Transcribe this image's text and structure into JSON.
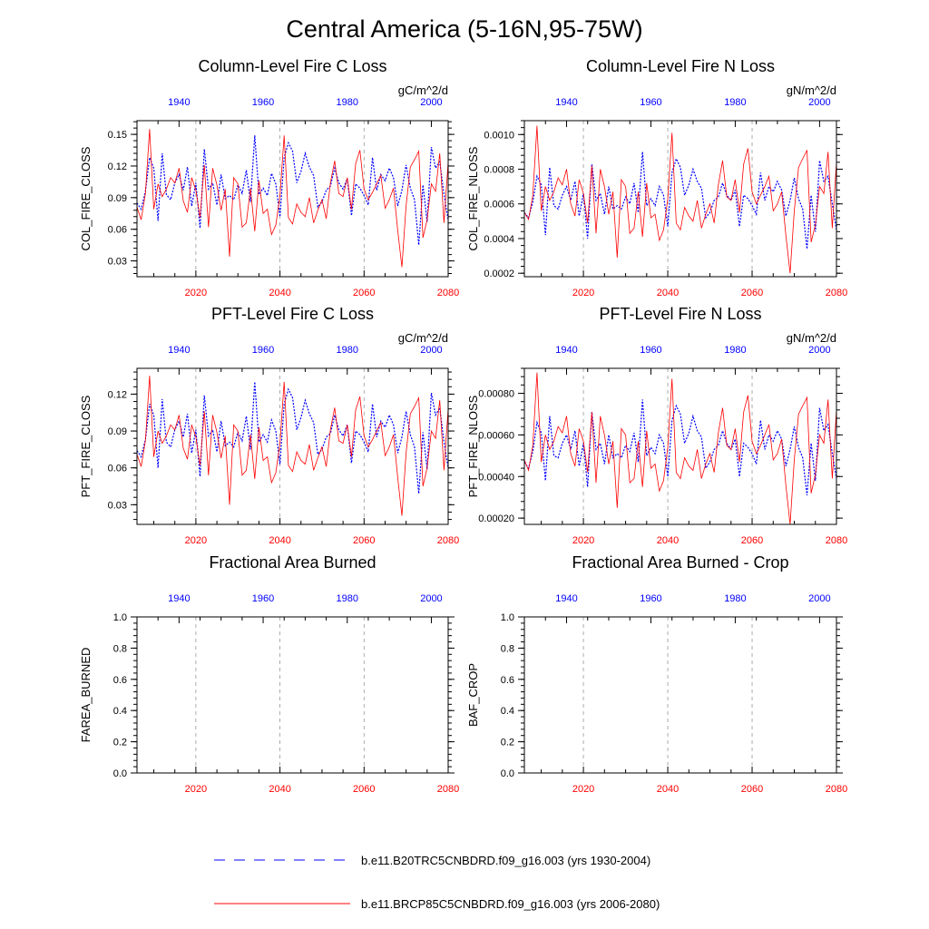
{
  "figure_title": "Central America (5-16N,95-75W)",
  "colors": {
    "historical": "#0000ff",
    "future": "#ff0000",
    "guide": "#999999",
    "axis": "#000000"
  },
  "legend": {
    "historical_label": "b.e11.B20TRC5CNBDRD.f09_g16.003 (yrs 1930-2004)",
    "future_label": "b.e11.BRCP85C5CNBDRD.f09_g16.003 (yrs 2006-2080)"
  },
  "chart_data": [
    {
      "id": "p1",
      "type": "line",
      "title": "Column-Level Fire C Loss",
      "units": "gC/m^2/d",
      "ylabel": "COL_FIRE_CLOSS",
      "top_axis": {
        "range": [
          1930,
          2004
        ],
        "ticks": [
          "1940",
          "1960",
          "1980",
          "2000"
        ]
      },
      "bottom_axis": {
        "range": [
          2006,
          2080
        ],
        "ticks": [
          "2020",
          "2040",
          "2060",
          "2080"
        ]
      },
      "guide_years": [
        2020,
        2040,
        2060
      ],
      "ylim": [
        0.015,
        0.163
      ],
      "yticks": [
        "0.03",
        "0.06",
        "0.09",
        "0.12",
        "0.15"
      ],
      "ytick_values": [
        0.03,
        0.06,
        0.09,
        0.12,
        0.15
      ],
      "series": [
        {
          "name": "b.e11.B20TRC5CNBDRD.f09_g16.003",
          "style": "dashed",
          "color": "#0000ff",
          "values": [
            0.085,
            0.079,
            0.096,
            0.128,
            0.118,
            0.068,
            0.132,
            0.093,
            0.088,
            0.104,
            0.112,
            0.097,
            0.119,
            0.082,
            0.104,
            0.061,
            0.136,
            0.098,
            0.104,
            0.083,
            0.112,
            0.089,
            0.092,
            0.088,
            0.102,
            0.094,
            0.116,
            0.086,
            0.149,
            0.093,
            0.099,
            0.092,
            0.113,
            0.103,
            0.072,
            0.128,
            0.142,
            0.134,
            0.104,
            0.115,
            0.132,
            0.119,
            0.111,
            0.081,
            0.086,
            0.097,
            0.101,
            0.118,
            0.104,
            0.098,
            0.108,
            0.073,
            0.103,
            0.099,
            0.092,
            0.083,
            0.128,
            0.097,
            0.112,
            0.106,
            0.118,
            0.109,
            0.082,
            0.097,
            0.121,
            0.099,
            0.088,
            0.045,
            0.102,
            0.067,
            0.138,
            0.118,
            0.124,
            0.093,
            0.069
          ]
        },
        {
          "name": "b.e11.BRCP85C5CNBDRD.f09_g16.003",
          "style": "solid",
          "color": "#ff0000",
          "values": [
            0.081,
            0.069,
            0.094,
            0.155,
            0.079,
            0.103,
            0.091,
            0.098,
            0.109,
            0.104,
            0.118,
            0.087,
            0.076,
            0.109,
            0.097,
            0.071,
            0.121,
            0.062,
            0.118,
            0.102,
            0.078,
            0.098,
            0.034,
            0.109,
            0.103,
            0.062,
            0.066,
            0.099,
            0.058,
            0.106,
            0.075,
            0.079,
            0.055,
            0.064,
            0.092,
            0.149,
            0.071,
            0.065,
            0.084,
            0.076,
            0.072,
            0.09,
            0.066,
            0.078,
            0.088,
            0.07,
            0.104,
            0.125,
            0.094,
            0.091,
            0.109,
            0.079,
            0.122,
            0.135,
            0.098,
            0.088,
            0.095,
            0.103,
            0.111,
            0.08,
            0.088,
            0.099,
            0.059,
            0.024,
            0.082,
            0.119,
            0.126,
            0.134,
            0.052,
            0.069,
            0.103,
            0.096,
            0.132,
            0.066,
            0.124
          ]
        }
      ]
    },
    {
      "id": "p2",
      "type": "line",
      "title": "Column-Level Fire N Loss",
      "units": "gN/m^2/d",
      "ylabel": "COL_FIRE_NLOSS",
      "top_axis": {
        "range": [
          1930,
          2004
        ],
        "ticks": [
          "1940",
          "1960",
          "1980",
          "2000"
        ]
      },
      "bottom_axis": {
        "range": [
          2006,
          2080
        ],
        "ticks": [
          "2020",
          "2040",
          "2060",
          "2080"
        ]
      },
      "guide_years": [
        2020,
        2040,
        2060
      ],
      "ylim": [
        0.00018,
        0.00108
      ],
      "yticks": [
        "0.0002",
        "0.0004",
        "0.0006",
        "0.0008",
        "0.0010"
      ],
      "ytick_values": [
        0.0002,
        0.0004,
        0.0006,
        0.0008,
        0.001
      ],
      "series": [
        {
          "name": "b.e11.B20TRC5CNBDRD.f09_g16.003",
          "style": "dashed",
          "color": "#0000ff",
          "values": [
            0.00055,
            0.00052,
            0.00061,
            0.00076,
            0.00071,
            0.00042,
            0.00081,
            0.00059,
            0.00057,
            0.00065,
            0.0007,
            0.00062,
            0.00073,
            0.00053,
            0.00066,
            0.0004,
            0.00083,
            0.00062,
            0.00066,
            0.00054,
            0.0007,
            0.00057,
            0.00059,
            0.00057,
            0.00064,
            0.0006,
            0.00072,
            0.00055,
            0.0009,
            0.00059,
            0.00063,
            0.00059,
            0.0007,
            0.00065,
            0.00047,
            0.00078,
            0.00086,
            0.00081,
            0.00065,
            0.00071,
            0.0008,
            0.00073,
            0.00069,
            0.00052,
            0.00055,
            0.00062,
            0.00064,
            0.00072,
            0.00065,
            0.00062,
            0.00068,
            0.00047,
            0.00065,
            0.00063,
            0.00059,
            0.00054,
            0.00078,
            0.00062,
            0.0007,
            0.00067,
            0.00073,
            0.00068,
            0.00053,
            0.00062,
            0.00075,
            0.00063,
            0.00057,
            0.00034,
            0.00065,
            0.00044,
            0.00085,
            0.00073,
            0.00076,
            0.0006,
            0.00045
          ]
        },
        {
          "name": "b.e11.BRCP85C5CNBDRD.f09_g16.003",
          "style": "solid",
          "color": "#ff0000",
          "values": [
            0.00055,
            0.00051,
            0.00065,
            0.00105,
            0.00056,
            0.0007,
            0.00062,
            0.00067,
            0.00075,
            0.00071,
            0.0008,
            0.0006,
            0.00053,
            0.00074,
            0.00066,
            0.00049,
            0.00082,
            0.00043,
            0.0008,
            0.0007,
            0.00054,
            0.00067,
            0.00029,
            0.00074,
            0.0007,
            0.00043,
            0.00046,
            0.00067,
            0.00041,
            0.00072,
            0.00052,
            0.00054,
            0.00039,
            0.00045,
            0.00063,
            0.00101,
            0.00049,
            0.00045,
            0.00058,
            0.00053,
            0.0005,
            0.00062,
            0.00046,
            0.00054,
            0.0006,
            0.00049,
            0.00071,
            0.00085,
            0.00064,
            0.00062,
            0.00074,
            0.00055,
            0.00083,
            0.00092,
            0.00067,
            0.0006,
            0.00065,
            0.0007,
            0.00076,
            0.00056,
            0.0006,
            0.00067,
            0.00042,
            0.0002,
            0.00056,
            0.00081,
            0.00086,
            0.00091,
            0.00038,
            0.00048,
            0.0007,
            0.00066,
            0.0009,
            0.00046,
            0.00084
          ]
        }
      ]
    },
    {
      "id": "p3",
      "type": "line",
      "title": "PFT-Level Fire C Loss",
      "units": "gC/m^2/d",
      "ylabel": "PFT_FIRE_CLOSS",
      "top_axis": {
        "range": [
          1930,
          2004
        ],
        "ticks": [
          "1940",
          "1960",
          "1980",
          "2000"
        ]
      },
      "bottom_axis": {
        "range": [
          2006,
          2080
        ],
        "ticks": [
          "2020",
          "2040",
          "2060",
          "2080"
        ]
      },
      "guide_years": [
        2020,
        2040,
        2060
      ],
      "ylim": [
        0.014,
        0.141
      ],
      "yticks": [
        "0.03",
        "0.06",
        "0.09",
        "0.12"
      ],
      "ytick_values": [
        0.03,
        0.06,
        0.09,
        0.12
      ],
      "series": [
        {
          "name": "b.e11.B20TRC5CNBDRD.f09_g16.003",
          "style": "dashed",
          "color": "#0000ff",
          "values": [
            0.074,
            0.069,
            0.083,
            0.112,
            0.103,
            0.06,
            0.116,
            0.081,
            0.077,
            0.091,
            0.098,
            0.085,
            0.104,
            0.072,
            0.091,
            0.053,
            0.119,
            0.086,
            0.091,
            0.073,
            0.098,
            0.078,
            0.081,
            0.077,
            0.089,
            0.082,
            0.102,
            0.075,
            0.13,
            0.081,
            0.087,
            0.081,
            0.099,
            0.09,
            0.063,
            0.112,
            0.124,
            0.117,
            0.091,
            0.101,
            0.115,
            0.104,
            0.097,
            0.071,
            0.075,
            0.085,
            0.088,
            0.103,
            0.091,
            0.086,
            0.095,
            0.064,
            0.09,
            0.087,
            0.081,
            0.073,
            0.112,
            0.085,
            0.098,
            0.093,
            0.103,
            0.095,
            0.072,
            0.085,
            0.106,
            0.087,
            0.077,
            0.039,
            0.089,
            0.059,
            0.121,
            0.103,
            0.109,
            0.081,
            0.06
          ]
        },
        {
          "name": "b.e11.BRCP85C5CNBDRD.f09_g16.003",
          "style": "solid",
          "color": "#ff0000",
          "values": [
            0.071,
            0.061,
            0.082,
            0.135,
            0.069,
            0.09,
            0.08,
            0.086,
            0.095,
            0.091,
            0.103,
            0.076,
            0.067,
            0.095,
            0.085,
            0.062,
            0.106,
            0.054,
            0.103,
            0.089,
            0.068,
            0.086,
            0.03,
            0.095,
            0.09,
            0.054,
            0.058,
            0.087,
            0.051,
            0.093,
            0.066,
            0.069,
            0.048,
            0.056,
            0.08,
            0.13,
            0.062,
            0.057,
            0.073,
            0.066,
            0.063,
            0.079,
            0.058,
            0.068,
            0.077,
            0.061,
            0.091,
            0.109,
            0.082,
            0.08,
            0.095,
            0.069,
            0.107,
            0.118,
            0.086,
            0.077,
            0.083,
            0.09,
            0.097,
            0.07,
            0.077,
            0.087,
            0.052,
            0.021,
            0.072,
            0.104,
            0.11,
            0.117,
            0.045,
            0.06,
            0.09,
            0.084,
            0.115,
            0.058,
            0.108
          ]
        }
      ]
    },
    {
      "id": "p4",
      "type": "line",
      "title": "PFT-Level Fire N Loss",
      "units": "gN/m^2/d",
      "ylabel": "PFT_FIRE_NLOSS",
      "top_axis": {
        "range": [
          1930,
          2004
        ],
        "ticks": [
          "1940",
          "1960",
          "1980",
          "2000"
        ]
      },
      "bottom_axis": {
        "range": [
          2006,
          2080
        ],
        "ticks": [
          "2020",
          "2040",
          "2060",
          "2080"
        ]
      },
      "guide_years": [
        2020,
        2040,
        2060
      ],
      "ylim": [
        0.00017,
        0.00092
      ],
      "yticks": [
        "0.00020",
        "0.00040",
        "0.00060",
        "0.00080"
      ],
      "ytick_values": [
        0.0002,
        0.0004,
        0.0006,
        0.0008
      ],
      "series": [
        {
          "name": "b.e11.B20TRC5CNBDRD.f09_g16.003",
          "style": "dashed",
          "color": "#0000ff",
          "values": [
            0.00047,
            0.00044,
            0.00052,
            0.00066,
            0.00061,
            0.00038,
            0.00069,
            0.0005,
            0.00049,
            0.00056,
            0.0006,
            0.00053,
            0.00062,
            0.00045,
            0.00056,
            0.00035,
            0.00071,
            0.00053,
            0.00056,
            0.00046,
            0.0006,
            0.00049,
            0.00051,
            0.00049,
            0.00055,
            0.00052,
            0.00061,
            0.00047,
            0.00077,
            0.0005,
            0.00054,
            0.00051,
            0.0006,
            0.00056,
            0.0004,
            0.00067,
            0.00074,
            0.0007,
            0.00056,
            0.00061,
            0.00069,
            0.00062,
            0.00059,
            0.00044,
            0.00047,
            0.00053,
            0.00055,
            0.00062,
            0.00056,
            0.00053,
            0.00058,
            0.0004,
            0.00056,
            0.00054,
            0.00051,
            0.00046,
            0.00067,
            0.00053,
            0.0006,
            0.00057,
            0.00062,
            0.00058,
            0.00045,
            0.00053,
            0.00064,
            0.00054,
            0.00049,
            0.00031,
            0.00056,
            0.00038,
            0.00073,
            0.00062,
            0.00065,
            0.00051,
            0.00039
          ]
        },
        {
          "name": "b.e11.BRCP85C5CNBDRD.f09_g16.003",
          "style": "solid",
          "color": "#ff0000",
          "values": [
            0.00048,
            0.00043,
            0.00055,
            0.0009,
            0.00047,
            0.0006,
            0.00053,
            0.00057,
            0.00064,
            0.00061,
            0.00069,
            0.00051,
            0.00045,
            0.00063,
            0.00057,
            0.00042,
            0.00071,
            0.00037,
            0.00069,
            0.0006,
            0.00046,
            0.00057,
            0.00025,
            0.00063,
            0.0006,
            0.00037,
            0.00039,
            0.00057,
            0.00035,
            0.00062,
            0.00044,
            0.00046,
            0.00033,
            0.00038,
            0.00054,
            0.00087,
            0.00042,
            0.00039,
            0.00049,
            0.00045,
            0.00043,
            0.00053,
            0.00039,
            0.00046,
            0.00051,
            0.00042,
            0.00061,
            0.00073,
            0.00055,
            0.00053,
            0.00063,
            0.00047,
            0.00071,
            0.00079,
            0.00057,
            0.00051,
            0.00055,
            0.0006,
            0.00065,
            0.00048,
            0.00051,
            0.00058,
            0.00036,
            0.00017,
            0.00048,
            0.0007,
            0.00074,
            0.00078,
            0.00032,
            0.00041,
            0.0006,
            0.00056,
            0.00077,
            0.00039,
            0.00072
          ]
        }
      ]
    },
    {
      "id": "p5",
      "type": "line",
      "title": "Fractional Area Burned",
      "units": "",
      "ylabel": "FAREA_BURNED",
      "top_axis": {
        "range": [
          1930,
          2004
        ],
        "ticks": [
          "1940",
          "1960",
          "1980",
          "2000"
        ]
      },
      "bottom_axis": {
        "range": [
          2006,
          2080
        ],
        "ticks": [
          "2020",
          "2040",
          "2060",
          "2080"
        ]
      },
      "guide_years": [
        2020,
        2040,
        2060
      ],
      "ylim": [
        0.0,
        1.0
      ],
      "yticks": [
        "0.0",
        "0.2",
        "0.4",
        "0.6",
        "0.8",
        "1.0"
      ],
      "ytick_values": [
        0.0,
        0.2,
        0.4,
        0.6,
        0.8,
        1.0
      ],
      "series": []
    },
    {
      "id": "p6",
      "type": "line",
      "title": "Fractional Area Burned - Crop",
      "units": "",
      "ylabel": "BAF_CROP",
      "top_axis": {
        "range": [
          1930,
          2004
        ],
        "ticks": [
          "1940",
          "1960",
          "1980",
          "2000"
        ]
      },
      "bottom_axis": {
        "range": [
          2006,
          2080
        ],
        "ticks": [
          "2020",
          "2040",
          "2060",
          "2080"
        ]
      },
      "guide_years": [
        2020,
        2040,
        2060
      ],
      "ylim": [
        0.0,
        1.0
      ],
      "yticks": [
        "0.0",
        "0.2",
        "0.4",
        "0.6",
        "0.8",
        "1.0"
      ],
      "ytick_values": [
        0.0,
        0.2,
        0.4,
        0.6,
        0.8,
        1.0
      ],
      "series": []
    }
  ]
}
